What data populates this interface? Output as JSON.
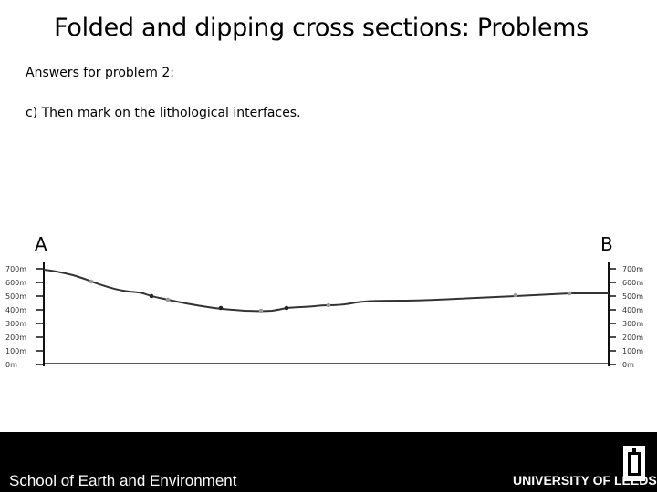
{
  "slide": {
    "title": "Folded and dipping cross sections: Problems",
    "subtitle": "Answers for problem 2:",
    "item": "c)   Then mark on the lithological interfaces."
  },
  "section": {
    "start_label": "A",
    "end_label": "B",
    "elevation_ticks": [
      "700m",
      "600m",
      "500m",
      "400m",
      "300m",
      "200m",
      "100m",
      "0m"
    ],
    "profile_color": "#333333",
    "black_marker_color": "#222222",
    "grey_marker_color": "#9a9a9a"
  },
  "footer": {
    "left_text": "School of Earth and Environment",
    "right_text": "UNIVERSITY OF LEEDS",
    "background": "#000000"
  }
}
